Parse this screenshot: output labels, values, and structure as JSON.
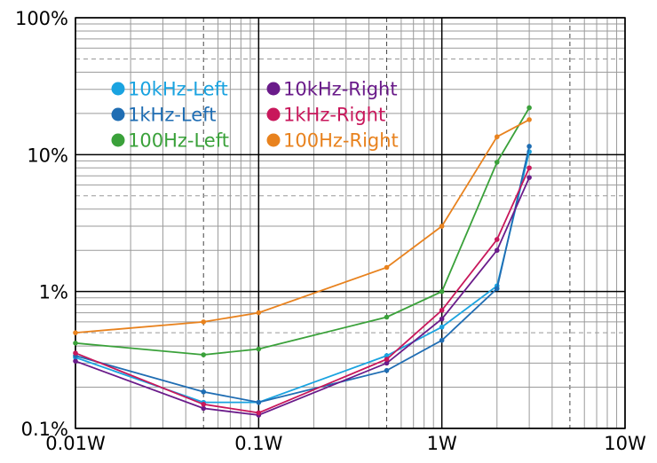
{
  "chart_data": {
    "type": "line",
    "xscale": "log",
    "yscale": "log",
    "xlim": [
      0.01,
      10
    ],
    "ylim": [
      0.1,
      100
    ],
    "x_ticks": [
      {
        "value": 0.01,
        "label": "0.01W"
      },
      {
        "value": 0.1,
        "label": "0.1W"
      },
      {
        "value": 1,
        "label": "1W"
      },
      {
        "value": 10,
        "label": "10W"
      }
    ],
    "y_ticks": [
      {
        "value": 0.1,
        "label": "0.1%"
      },
      {
        "value": 1,
        "label": "1%"
      },
      {
        "value": 10,
        "label": "10%"
      },
      {
        "value": 100,
        "label": "100%"
      }
    ],
    "x": [
      0.01,
      0.05,
      0.1,
      0.5,
      1,
      2,
      3
    ],
    "grid": true,
    "legend_position": "top-left",
    "series": [
      {
        "name": "10kHz-Left",
        "color": "#1aa3e0",
        "values": [
          0.33,
          0.155,
          0.155,
          0.34,
          0.55,
          1.1,
          10.5
        ]
      },
      {
        "name": "1kHz-Left",
        "color": "#1f6db3",
        "values": [
          0.34,
          0.185,
          0.155,
          0.265,
          0.44,
          1.05,
          11.5
        ]
      },
      {
        "name": "100Hz-Left",
        "color": "#3aa13a",
        "values": [
          0.42,
          0.345,
          0.38,
          0.65,
          1.0,
          8.8,
          22.0
        ]
      },
      {
        "name": "10kHz-Right",
        "color": "#6a1b8a",
        "values": [
          0.31,
          0.14,
          0.125,
          0.3,
          0.63,
          2.0,
          6.8
        ]
      },
      {
        "name": "1kHz-Right",
        "color": "#c8175b",
        "values": [
          0.355,
          0.15,
          0.13,
          0.32,
          0.73,
          2.4,
          8.0
        ]
      },
      {
        "name": "100Hz-Right",
        "color": "#e8821e",
        "values": [
          0.5,
          0.6,
          0.7,
          1.5,
          3.0,
          13.5,
          18.0
        ]
      }
    ]
  }
}
